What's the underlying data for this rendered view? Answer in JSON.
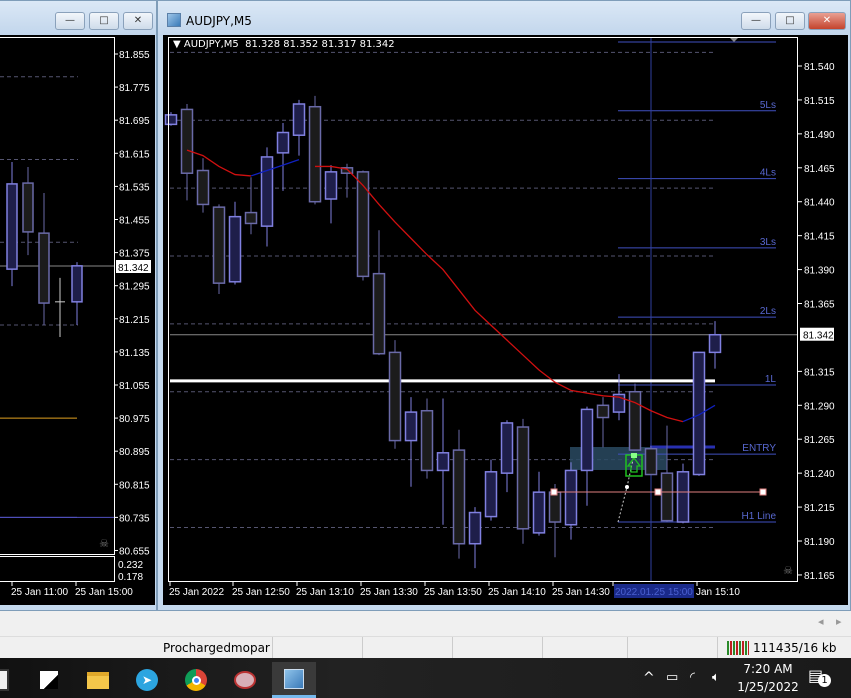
{
  "left_window": {
    "price_labels": [
      "81.855",
      "81.775",
      "81.695",
      "81.615",
      "81.535",
      "81.455",
      "81.375",
      "81.295",
      "81.215",
      "81.135",
      "81.055",
      "80.975",
      "80.895",
      "80.815",
      "80.735",
      "80.655"
    ],
    "current_price_tag": "81.342",
    "indicator_labels": [
      "0.232",
      "0.178"
    ],
    "time_labels": [
      "25 Jan 11:00",
      "25 Jan 15:00"
    ],
    "minimize": "—",
    "restore": "□",
    "close": "✕"
  },
  "main_window": {
    "title": "AUDJPY,M5",
    "minimize": "—",
    "restore": "□",
    "close": "✕",
    "chart_header": "▼ AUDJPY,M5  81.328 81.352 81.317 81.342",
    "current_price_tag": "81.342",
    "price_labels": [
      "81.540",
      "81.515",
      "81.490",
      "81.465",
      "81.440",
      "81.415",
      "81.390",
      "81.365",
      "81.315",
      "81.290",
      "81.265",
      "81.240",
      "81.215",
      "81.190",
      "81.165"
    ],
    "time_labels": [
      "25 Jan 2022",
      "25 Jan 12:50",
      "25 Jan 13:10",
      "25 Jan 13:30",
      "25 Jan 13:50",
      "25 Jan 14:10",
      "25 Jan 14:30",
      "2022.01.25 15:00",
      "Jan 15:10"
    ],
    "levels": [
      {
        "label": "5Ls",
        "price": 81.507
      },
      {
        "label": "4Ls",
        "price": 81.457
      },
      {
        "label": "3Ls",
        "price": 81.406
      },
      {
        "label": "2Ls",
        "price": 81.355
      },
      {
        "label": "1L",
        "price": 81.305
      },
      {
        "label": "ENTRY",
        "price": 81.254
      },
      {
        "label": "H1 Line",
        "price": 81.204
      }
    ],
    "colors": {
      "bull_body": "#1e1e4a",
      "bull_edge": "#8080e0",
      "bear_body": "#1c1c1c",
      "bear_edge": "#6a6aa8",
      "ma": "#d01010",
      "ma_alt": "#1020c0",
      "level": "#4050c0",
      "entry_zone": "#2a4a62",
      "trend_line": "#e08080",
      "signal": "#20c020"
    }
  },
  "chart_data": [
    {
      "type": "candlestick",
      "symbol": "AUDJPY,M5",
      "ylim": [
        81.165,
        81.54
      ],
      "grid": true,
      "candles": [
        [
          81.497,
          81.506,
          81.496,
          81.504
        ],
        [
          81.508,
          81.512,
          81.441,
          81.461
        ],
        [
          81.463,
          81.472,
          81.432,
          81.438
        ],
        [
          81.436,
          81.438,
          81.372,
          81.38
        ],
        [
          81.381,
          81.44,
          81.379,
          81.429
        ],
        [
          81.432,
          81.458,
          81.416,
          81.424
        ],
        [
          81.422,
          81.48,
          81.407,
          81.473
        ],
        [
          81.476,
          81.498,
          81.448,
          81.491
        ],
        [
          81.489,
          81.515,
          81.474,
          81.512
        ],
        [
          81.51,
          81.518,
          81.438,
          81.44
        ],
        [
          81.442,
          81.467,
          81.424,
          81.462
        ],
        [
          81.465,
          81.468,
          81.443,
          81.461
        ],
        [
          81.462,
          81.463,
          81.382,
          81.385
        ],
        [
          81.387,
          81.419,
          81.327,
          81.328
        ],
        [
          81.329,
          81.338,
          81.258,
          81.264
        ],
        [
          81.264,
          81.296,
          81.23,
          81.285
        ],
        [
          81.286,
          81.295,
          81.236,
          81.242
        ],
        [
          81.242,
          81.295,
          81.202,
          81.255
        ],
        [
          81.257,
          81.272,
          81.177,
          81.188
        ],
        [
          81.188,
          81.215,
          81.17,
          81.211
        ],
        [
          81.208,
          81.25,
          81.205,
          81.241
        ],
        [
          81.24,
          81.279,
          81.226,
          81.277
        ],
        [
          81.274,
          81.28,
          81.188,
          81.199
        ],
        [
          81.196,
          81.241,
          81.194,
          81.226
        ],
        [
          81.226,
          81.232,
          81.178,
          81.204
        ],
        [
          81.202,
          81.248,
          81.191,
          81.242
        ],
        [
          81.242,
          81.289,
          81.216,
          81.287
        ],
        [
          81.29,
          81.296,
          81.259,
          81.281
        ],
        [
          81.285,
          81.313,
          81.279,
          81.298
        ],
        [
          81.3,
          81.306,
          81.257,
          81.257
        ],
        [
          81.258,
          81.26,
          81.239,
          81.239
        ],
        [
          81.24,
          81.275,
          81.204,
          81.205
        ],
        [
          81.204,
          81.247,
          81.203,
          81.241
        ],
        [
          81.239,
          81.329,
          81.238,
          81.329
        ],
        [
          81.329,
          81.352,
          81.317,
          81.342
        ]
      ],
      "ma": [
        null,
        81.478,
        81.474,
        81.466,
        81.46,
        81.459,
        81.463,
        81.467,
        81.471,
        81.466,
        81.466,
        81.464,
        81.452,
        81.438,
        81.425,
        81.413,
        81.401,
        81.39,
        81.375,
        81.36,
        81.349,
        81.338,
        81.327,
        81.316,
        81.307,
        81.301,
        81.299,
        81.297,
        81.296,
        81.292,
        81.286,
        81.281,
        81.278,
        81.283,
        81.29
      ],
      "white_line": 81.308,
      "current_price": 81.342
    },
    {
      "type": "candlestick",
      "ylim": [
        80.655,
        81.855
      ],
      "candles": [
        [
          81.335,
          81.594,
          81.294,
          81.541
        ],
        [
          81.543,
          81.582,
          81.369,
          81.425
        ],
        [
          81.422,
          81.519,
          81.2,
          81.253
        ],
        [
          81.256,
          81.314,
          81.171,
          81.256
        ],
        [
          81.256,
          81.352,
          81.2,
          81.343
        ]
      ],
      "hlines": [
        {
          "price": 80.975,
          "color": "#e0a020"
        },
        {
          "price": 80.735,
          "color": "#5050c0"
        }
      ]
    }
  ],
  "hscroll": {
    "left": "◂",
    "right": "▸"
  },
  "status_bar": {
    "profile": "Prochargedmopar",
    "traffic": "111435/16 kb"
  },
  "taskbar": {
    "apps": [
      "calculator-icon",
      "notepad-icon",
      "file-explorer-icon",
      "telegram-icon",
      "chrome-icon",
      "snipping-tool-icon",
      "metatrader-icon"
    ],
    "time": "7:20 AM",
    "date": "1/25/2022",
    "notifications": "1"
  }
}
